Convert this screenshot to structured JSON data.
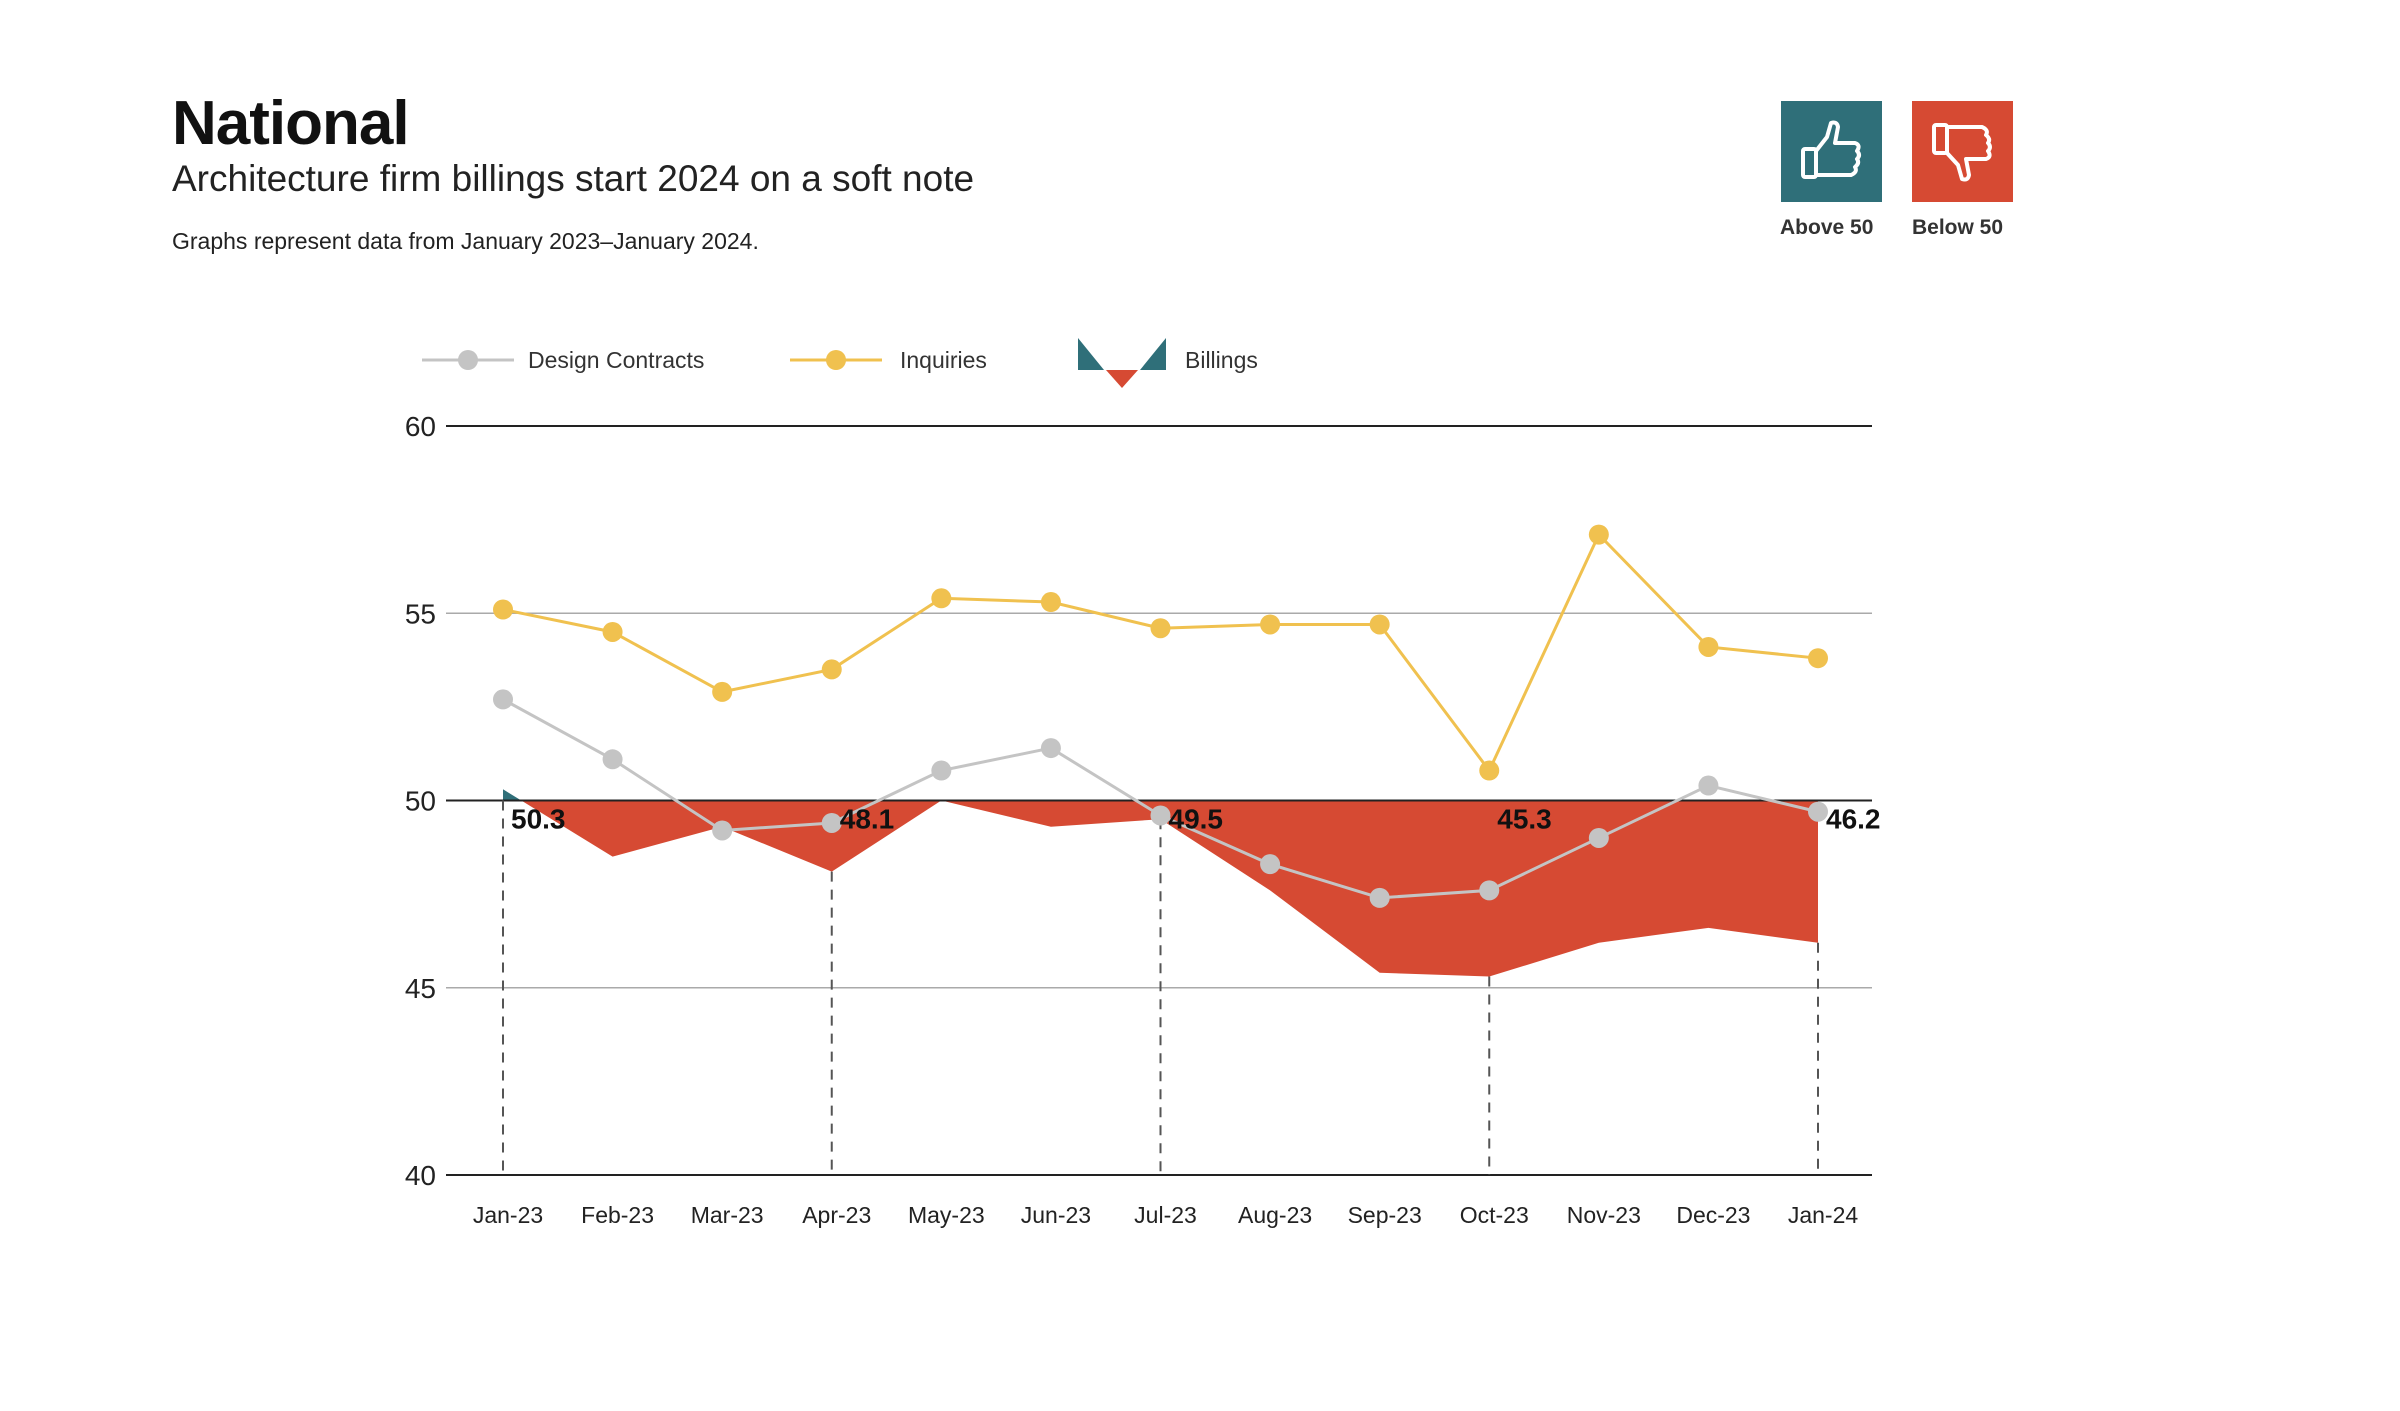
{
  "header": {
    "title": "National",
    "subtitle": "Architecture firm billings start 2024 on a soft note",
    "note": "Graphs represent data from January 2023–January 2024."
  },
  "key": {
    "above": {
      "label": "Above 50",
      "icon": "thumbs-up-icon",
      "color": "#2f6f79"
    },
    "below": {
      "label": "Below 50",
      "icon": "thumbs-down-icon",
      "color": "#d64a33"
    }
  },
  "chart_data": {
    "type": "line",
    "categories": [
      "Jan-23",
      "Feb-23",
      "Mar-23",
      "Apr-23",
      "May-23",
      "Jun-23",
      "Jul-23",
      "Aug-23",
      "Sep-23",
      "Oct-23",
      "Nov-23",
      "Dec-23",
      "Jan-24"
    ],
    "ylim": [
      40,
      60
    ],
    "yticks": [
      40,
      45,
      50,
      55,
      60
    ],
    "baseline": 50,
    "grid": true,
    "legend_placement": "top-left",
    "series": [
      {
        "name": "Design Contracts",
        "kind": "line",
        "color": "#c4c4c4",
        "values": [
          52.7,
          51.1,
          49.2,
          49.4,
          50.8,
          51.4,
          49.6,
          48.3,
          47.4,
          47.6,
          49.0,
          50.4,
          49.7
        ]
      },
      {
        "name": "Inquiries",
        "kind": "line",
        "color": "#f0c14f",
        "values": [
          55.1,
          54.5,
          52.9,
          53.5,
          55.4,
          55.3,
          54.6,
          54.7,
          54.7,
          50.8,
          57.1,
          54.1,
          53.8
        ]
      },
      {
        "name": "Billings",
        "kind": "area-around-50",
        "color_above": "#2f6f79",
        "color_below": "#d64a33",
        "values": [
          50.3,
          48.5,
          49.3,
          48.1,
          50.0,
          49.3,
          49.5,
          47.6,
          45.4,
          45.3,
          46.2,
          46.6,
          46.2
        ]
      }
    ],
    "annotations": [
      {
        "category": "Jan-23",
        "label": "50.3"
      },
      {
        "category": "Apr-23",
        "label": "48.1"
      },
      {
        "category": "Jul-23",
        "label": "49.5"
      },
      {
        "category": "Oct-23",
        "label": "45.3"
      },
      {
        "category": "Jan-24",
        "label": "46.2"
      }
    ]
  }
}
